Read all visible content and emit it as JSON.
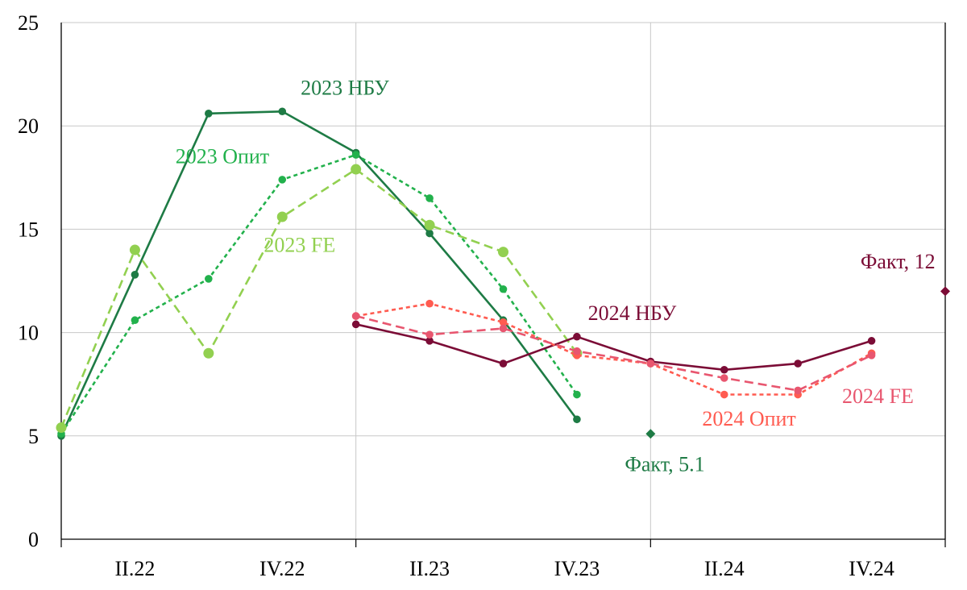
{
  "chart_data": {
    "type": "line",
    "title": "",
    "xlabel": "",
    "ylabel": "",
    "ylim": [
      0,
      25
    ],
    "yticks": [
      0,
      5,
      10,
      15,
      20,
      25
    ],
    "x_tick_labels": [
      {
        "label": "II.22",
        "pos": 1
      },
      {
        "label": "IV.22",
        "pos": 3
      },
      {
        "label": "II.23",
        "pos": 5
      },
      {
        "label": "IV.23",
        "pos": 7
      },
      {
        "label": "II.24",
        "pos": 9
      },
      {
        "label": "IV.24",
        "pos": 11
      }
    ],
    "xlim": [
      0,
      12
    ],
    "v_gridlines": [
      4,
      8
    ],
    "grid": true,
    "series": [
      {
        "name": "2023 НБУ",
        "style": "solid",
        "color": "#1e7b45",
        "marker": "small",
        "x": [
          0,
          1,
          2,
          3,
          4,
          5,
          6,
          7
        ],
        "values": [
          5.0,
          12.8,
          20.6,
          20.7,
          18.7,
          14.8,
          10.6,
          5.8
        ]
      },
      {
        "name": "2023 Опит",
        "style": "dotted",
        "color": "#22b14c",
        "marker": "small",
        "x": [
          0,
          1,
          2,
          3,
          4,
          5,
          6,
          7
        ],
        "values": [
          5.1,
          10.6,
          12.6,
          17.4,
          18.6,
          16.5,
          12.1,
          7.0
        ]
      },
      {
        "name": "2023 FE",
        "style": "dashed",
        "color": "#92d050",
        "marker": "large",
        "x": [
          0,
          1,
          2,
          3,
          4,
          5,
          6,
          7
        ],
        "values": [
          5.4,
          14.0,
          9.0,
          15.6,
          17.9,
          15.2,
          13.9,
          9.0
        ]
      },
      {
        "name": "2024 НБУ",
        "style": "solid",
        "color": "#7b0c36",
        "marker": "small",
        "x": [
          4,
          5,
          6,
          7,
          8,
          9,
          10,
          11
        ],
        "values": [
          10.4,
          9.6,
          8.5,
          9.8,
          8.6,
          8.2,
          8.5,
          9.6
        ]
      },
      {
        "name": "2024 Опит",
        "style": "dotted",
        "color": "#ff5b50",
        "marker": "small",
        "x": [
          4,
          5,
          6,
          7,
          8,
          9,
          10,
          11
        ],
        "values": [
          10.8,
          11.4,
          10.5,
          8.9,
          8.5,
          7.0,
          7.0,
          9.0
        ]
      },
      {
        "name": "2024 FE",
        "style": "dashed",
        "color": "#e8566f",
        "marker": "small",
        "x": [
          4,
          5,
          6,
          7,
          8,
          9,
          10,
          11
        ],
        "values": [
          10.8,
          9.9,
          10.2,
          9.1,
          8.5,
          7.8,
          7.2,
          8.9
        ]
      }
    ],
    "facts": [
      {
        "label": "Факт, 5.1",
        "x": 8,
        "value": 5.1,
        "color": "#1e7b45"
      },
      {
        "label": "Факт, 12",
        "x": 12,
        "value": 12.0,
        "color": "#7b0c36"
      }
    ],
    "annotations": [
      {
        "text": "2023 НБУ",
        "color": "#1e7b45",
        "x": 3.25,
        "value": 21.5
      },
      {
        "text": "2023 Опит",
        "color": "#22b14c",
        "x": 1.55,
        "value": 18.2
      },
      {
        "text": "2023 FE",
        "color": "#92d050",
        "x": 2.75,
        "value": 13.9
      },
      {
        "text": "2024 НБУ",
        "color": "#7b0c36",
        "x": 7.15,
        "value": 10.6
      },
      {
        "text": "2024 Опит",
        "color": "#ff5b50",
        "x": 8.7,
        "value": 5.5
      },
      {
        "text": "2024 FE",
        "color": "#e8566f",
        "x": 10.6,
        "value": 6.6
      },
      {
        "text": "Факт, 5.1",
        "color": "#1e7b45",
        "x": 7.65,
        "value": 3.3
      },
      {
        "text": "Факт, 12",
        "color": "#7b0c36",
        "x": 10.85,
        "value": 13.1
      }
    ]
  }
}
